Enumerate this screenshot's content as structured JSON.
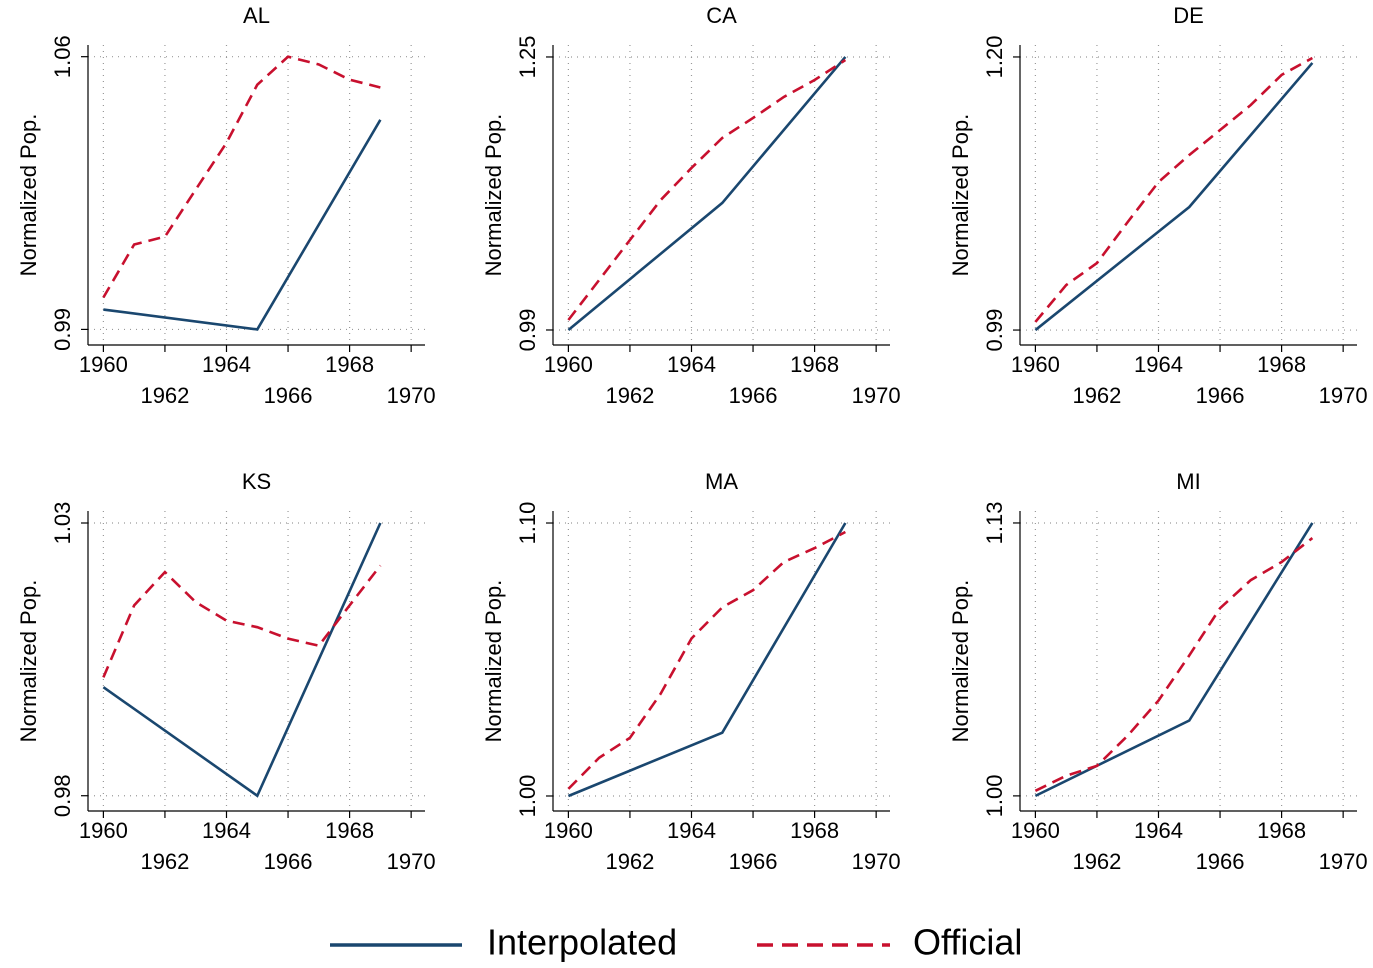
{
  "chart_data": [
    {
      "type": "line",
      "title": "AL",
      "ylabel": "Normalized Pop.",
      "xlim": [
        1959.5,
        1970.45
      ],
      "xticks": [
        1960,
        1962,
        1964,
        1966,
        1968,
        1970
      ],
      "ylim": [
        0.986,
        1.063
      ],
      "yticks": [
        0.99,
        1.06
      ],
      "grid": true,
      "series": [
        {
          "name": "Interpolated",
          "color": "#1a476f",
          "dash": false,
          "x": [
            1960,
            1965,
            1969
          ],
          "values": [
            0.9951,
            0.99,
            1.0438
          ]
        },
        {
          "name": "Official",
          "color": "#c8102e",
          "dash": true,
          "x": [
            1960,
            1961,
            1962,
            1963,
            1964,
            1965,
            1966,
            1967,
            1968,
            1969
          ],
          "values": [
            0.9982,
            1.0118,
            1.0138,
            1.0259,
            1.0379,
            1.0528,
            1.06,
            1.058,
            1.0541,
            1.0521
          ]
        }
      ]
    },
    {
      "type": "line",
      "title": "CA",
      "ylabel": "Normalized Pop.",
      "xlim": [
        1959.5,
        1970.45
      ],
      "xticks": [
        1960,
        1962,
        1964,
        1966,
        1968,
        1970
      ],
      "ylim": [
        0.9757,
        1.2614
      ],
      "yticks": [
        0.99,
        1.25
      ],
      "grid": true,
      "series": [
        {
          "name": "Interpolated",
          "color": "#1a476f",
          "dash": false,
          "x": [
            1960,
            1965,
            1969
          ],
          "values": [
            0.99,
            1.111,
            1.25
          ]
        },
        {
          "name": "Official",
          "color": "#c8102e",
          "dash": true,
          "x": [
            1960,
            1961,
            1962,
            1963,
            1964,
            1965,
            1966,
            1967,
            1968,
            1969
          ],
          "values": [
            0.9995,
            1.0376,
            1.0757,
            1.1138,
            1.1443,
            1.1729,
            1.1919,
            1.2119,
            1.2281,
            1.2471
          ]
        }
      ]
    },
    {
      "type": "line",
      "title": "DE",
      "ylabel": "Normalized Pop.",
      "xlim": [
        1959.5,
        1970.45
      ],
      "xticks": [
        1960,
        1962,
        1964,
        1966,
        1968,
        1970
      ],
      "ylim": [
        0.9785,
        1.2092
      ],
      "yticks": [
        0.99,
        {
          "value": 1.2,
          "label": "1.20"
        }
      ],
      "grid": true,
      "series": [
        {
          "name": "Interpolated",
          "color": "#1a476f",
          "dash": false,
          "x": [
            1960,
            1965,
            1969
          ],
          "values": [
            0.99,
            1.0846,
            1.1954
          ]
        },
        {
          "name": "Official",
          "color": "#c8102e",
          "dash": true,
          "x": [
            1960,
            1961,
            1962,
            1963,
            1964,
            1965,
            1966,
            1967,
            1968,
            1969
          ],
          "values": [
            0.9962,
            1.0246,
            1.0415,
            1.0731,
            1.1038,
            1.1246,
            1.1438,
            1.1631,
            1.1862,
            1.1992
          ]
        }
      ]
    },
    {
      "type": "line",
      "title": "KS",
      "ylabel": "Normalized Pop.",
      "xlim": [
        1959.5,
        1970.45
      ],
      "xticks": [
        1960,
        1962,
        1964,
        1966,
        1968,
        1970
      ],
      "ylim": [
        0.9772,
        1.0322
      ],
      "yticks": [
        0.98,
        1.03
      ],
      "grid": true,
      "series": [
        {
          "name": "Interpolated",
          "color": "#1a476f",
          "dash": false,
          "x": [
            1960,
            1965,
            1969
          ],
          "values": [
            0.9999,
            0.98,
            1.03
          ]
        },
        {
          "name": "Official",
          "color": "#c8102e",
          "dash": true,
          "x": [
            1960,
            1961,
            1962,
            1963,
            1964,
            1965,
            1966,
            1967,
            1968,
            1969
          ],
          "values": [
            1.0017,
            1.0149,
            1.021,
            1.0155,
            1.0121,
            1.0109,
            1.0088,
            1.0075,
            1.0149,
            1.0222
          ]
        }
      ]
    },
    {
      "type": "line",
      "title": "MA",
      "ylabel": "Normalized Pop.",
      "xlim": [
        1959.5,
        1970.45
      ],
      "xticks": [
        1960,
        1962,
        1964,
        1966,
        1968,
        1970
      ],
      "ylim": [
        0.9945,
        1.1044
      ],
      "yticks": [
        {
          "value": 1,
          "label": "1.00"
        },
        {
          "value": 1.1,
          "label": "1.10"
        }
      ],
      "grid": true,
      "series": [
        {
          "name": "Interpolated",
          "color": "#1a476f",
          "dash": false,
          "x": [
            1960,
            1965,
            1969
          ],
          "values": [
            1.0,
            1.0232,
            1.1
          ]
        },
        {
          "name": "Official",
          "color": "#c8102e",
          "dash": true,
          "x": [
            1960,
            1961,
            1962,
            1963,
            1964,
            1965,
            1966,
            1967,
            1968,
            1969
          ],
          "values": [
            1.0026,
            1.014,
            1.0213,
            1.0375,
            1.0577,
            1.0691,
            1.0754,
            1.0857,
            1.0908,
            1.0967
          ]
        }
      ]
    },
    {
      "type": "line",
      "title": "MI",
      "ylabel": "Normalized Pop.",
      "xlim": [
        1959.5,
        1970.45
      ],
      "xticks": [
        1960,
        1962,
        1964,
        1966,
        1968,
        1970
      ],
      "ylim": [
        0.9928,
        1.1357
      ],
      "yticks": [
        {
          "value": 1,
          "label": "1.00"
        },
        1.13
      ],
      "grid": true,
      "series": [
        {
          "name": "Interpolated",
          "color": "#1a476f",
          "dash": false,
          "x": [
            1960,
            1965,
            1969
          ],
          "values": [
            1.0,
            1.0359,
            1.13
          ]
        },
        {
          "name": "Official",
          "color": "#c8102e",
          "dash": true,
          "x": [
            1960,
            1961,
            1962,
            1963,
            1964,
            1965,
            1966,
            1967,
            1968,
            1969
          ],
          "values": [
            1.0024,
            1.0096,
            1.0143,
            1.0287,
            1.0454,
            1.0669,
            1.0894,
            1.1028,
            1.1114,
            1.1228
          ]
        }
      ]
    }
  ]
}
